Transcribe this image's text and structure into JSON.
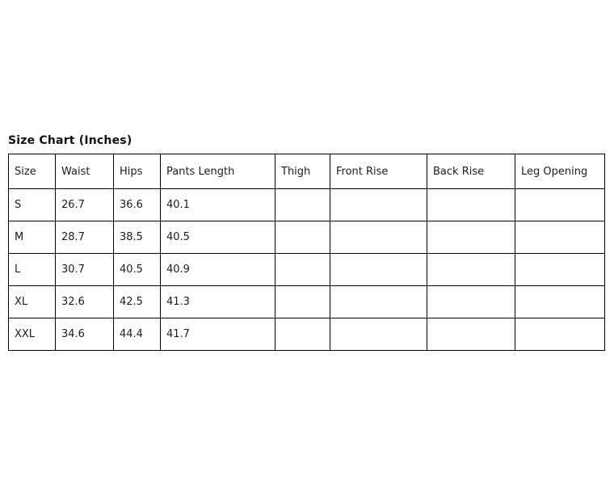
{
  "page": {
    "background_color": "#ffffff",
    "border_color": "#000000",
    "text_color": "#1c1c1c"
  },
  "chart_data": {
    "type": "table",
    "title": "Size Chart (Inches)",
    "columns": [
      "Size",
      "Waist",
      "Hips",
      "Pants Length",
      "Thigh",
      "Front Rise",
      "Back Rise",
      "Leg Opening"
    ],
    "rows": [
      [
        "S",
        "26.7",
        "36.6",
        "40.1",
        "",
        "",
        "",
        ""
      ],
      [
        "M",
        "28.7",
        "38.5",
        "40.5",
        "",
        "",
        "",
        ""
      ],
      [
        "L",
        "30.7",
        "40.5",
        "40.9",
        "",
        "",
        "",
        ""
      ],
      [
        "XL",
        "32.6",
        "42.5",
        "41.3",
        "",
        "",
        "",
        ""
      ],
      [
        "XXL",
        "34.6",
        "44.4",
        "41.7",
        "",
        "",
        "",
        ""
      ]
    ]
  }
}
